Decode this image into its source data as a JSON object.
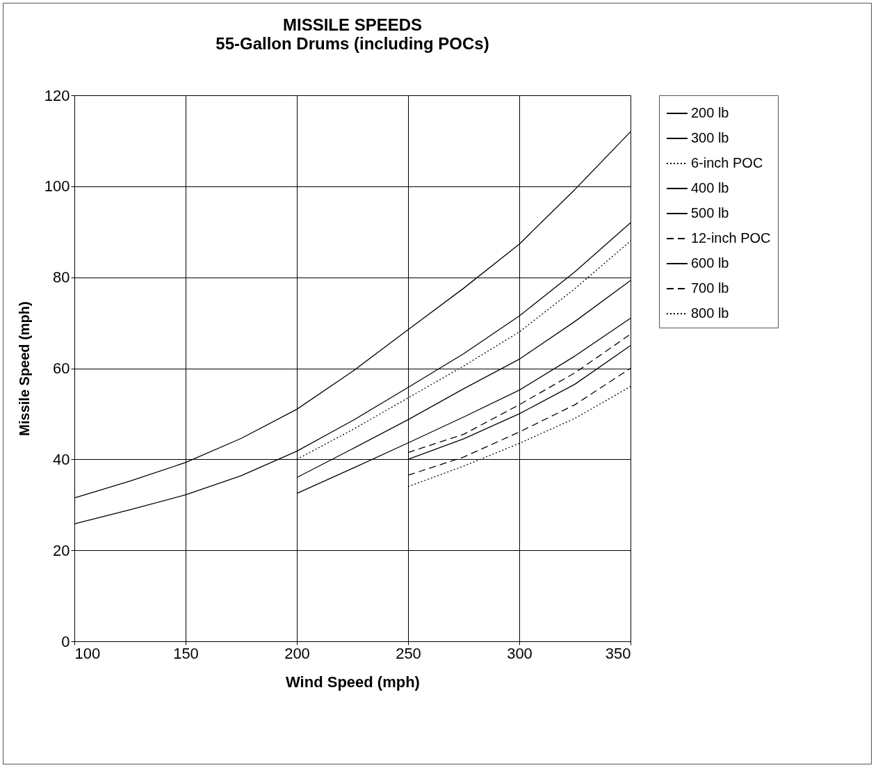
{
  "chart_data": {
    "type": "line",
    "title": "MISSILE SPEEDS",
    "subtitle": "55-Gallon Drums (including POCs)",
    "xlabel": "Wind Speed (mph)",
    "ylabel": "Missile Speed (mph)",
    "xlim": [
      100,
      350
    ],
    "xticks": [
      100,
      150,
      200,
      250,
      300,
      350
    ],
    "ylim": [
      0,
      120
    ],
    "yticks": [
      0,
      20,
      40,
      60,
      80,
      100,
      120
    ],
    "grid": true,
    "legend": "right",
    "marker": "none",
    "series": [
      {
        "name": "200 lb",
        "color": "#000000",
        "line_style": "solid",
        "x": [
          100,
          125,
          150,
          175,
          200,
          225,
          250,
          275,
          300,
          325,
          350
        ],
        "values": [
          31.5,
          35.2,
          39.3,
          44.6,
          51,
          59.3,
          68.5,
          77.6,
          87.3,
          99.3,
          112
        ]
      },
      {
        "name": "300 lb",
        "color": "#000000",
        "line_style": "solid",
        "x": [
          100,
          125,
          150,
          175,
          200,
          225,
          250,
          275,
          300,
          325,
          350
        ],
        "values": [
          25.8,
          28.9,
          32.2,
          36.4,
          41.8,
          48.5,
          55.8,
          63.2,
          71.5,
          81.2,
          92
        ]
      },
      {
        "name": "6-inch POC",
        "color": "#000000",
        "line_style": "dotted",
        "x": [
          200,
          225,
          250,
          275,
          300,
          325,
          350
        ],
        "values": [
          40,
          46.5,
          53.5,
          60.5,
          68,
          77.5,
          88
        ]
      },
      {
        "name": "400 lb",
        "color": "#000000",
        "line_style": "solid",
        "x": [
          200,
          225,
          250,
          275,
          300,
          325,
          350
        ],
        "values": [
          36,
          42.3,
          48.7,
          55.5,
          62,
          70.3,
          79.3
        ]
      },
      {
        "name": "500 lb",
        "color": "#000000",
        "line_style": "solid",
        "x": [
          200,
          225,
          250,
          275,
          300,
          325,
          350
        ],
        "values": [
          32.5,
          38,
          43.6,
          49.3,
          55.2,
          62.7,
          71
        ]
      },
      {
        "name": "12-inch POC",
        "color": "#000000",
        "line_style": "dashed",
        "x": [
          250,
          275,
          300,
          325,
          350
        ],
        "values": [
          41.5,
          45.5,
          52,
          59,
          67.5
        ]
      },
      {
        "name": "600 lb",
        "color": "#000000",
        "line_style": "solid",
        "x": [
          250,
          275,
          300,
          325,
          350
        ],
        "values": [
          40,
          44.5,
          50,
          56.5,
          65
        ]
      },
      {
        "name": "700 lb",
        "color": "#000000",
        "line_style": "dashed",
        "x": [
          250,
          275,
          300,
          325,
          350
        ],
        "values": [
          36.5,
          40.5,
          46,
          52,
          60
        ]
      },
      {
        "name": "800 lb",
        "color": "#000000",
        "line_style": "dotted",
        "x": [
          250,
          275,
          300,
          325,
          350
        ],
        "values": [
          34,
          38.5,
          43.5,
          49,
          56
        ]
      }
    ]
  }
}
